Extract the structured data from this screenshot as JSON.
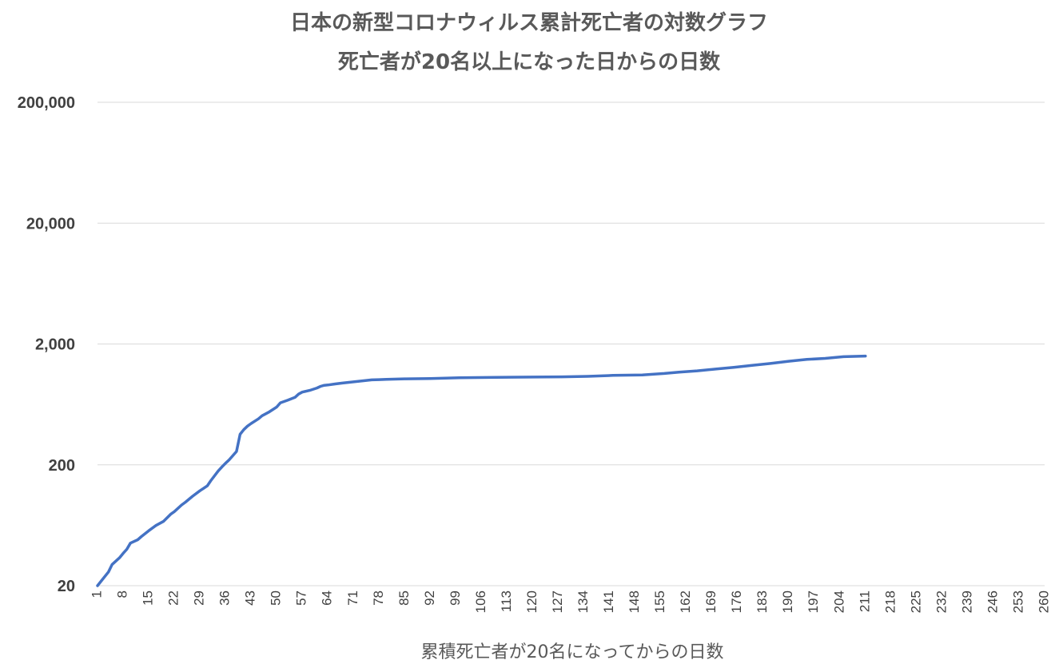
{
  "chart_data": {
    "type": "line",
    "title": "日本の新型コロナウィルス累計死亡者の対数グラフ",
    "subtitle": "死亡者が20名以上になった日からの日数",
    "xlabel": "累積死亡者が20名になってからの日数",
    "ylabel": "",
    "y_scale": "log",
    "ylim": [
      20,
      200000
    ],
    "y_ticks": [
      20,
      200,
      2000,
      20000,
      200000
    ],
    "y_tick_labels": [
      "20",
      "200",
      "2,000",
      "20,000",
      "200,000"
    ],
    "xlim": [
      1,
      260
    ],
    "x_ticks": [
      1,
      8,
      15,
      22,
      29,
      36,
      43,
      50,
      57,
      64,
      71,
      78,
      85,
      92,
      99,
      106,
      113,
      120,
      127,
      134,
      141,
      148,
      155,
      162,
      169,
      176,
      183,
      190,
      197,
      204,
      211,
      218,
      225,
      232,
      239,
      246,
      253,
      260
    ],
    "grid": true,
    "legend": "none",
    "colors": {
      "series": "#4472c4",
      "grid": "#d9d9d9",
      "text": "#595959"
    },
    "series": [
      {
        "x": [
          1,
          4,
          5,
          7,
          8,
          9,
          10,
          12,
          13,
          15,
          17,
          19,
          21,
          22,
          24,
          25,
          27,
          29,
          31,
          32,
          34,
          35,
          36,
          37,
          39,
          40,
          41,
          42,
          43,
          45,
          46,
          48,
          50,
          51,
          53,
          55,
          56,
          57,
          59,
          61,
          62,
          63,
          64,
          66,
          68,
          70,
          72,
          74,
          76,
          78,
          80,
          85,
          92,
          100,
          110,
          120,
          128,
          135,
          142,
          150,
          156,
          160,
          165,
          170,
          175,
          180,
          185,
          190,
          195,
          200,
          205,
          211
        ],
        "values": [
          20,
          26,
          30,
          34,
          37,
          40,
          45,
          48,
          51,
          57,
          63,
          68,
          78,
          82,
          93,
          98,
          110,
          122,
          134,
          148,
          178,
          192,
          206,
          220,
          258,
          358,
          391,
          418,
          440,
          480,
          510,
          549,
          602,
          652,
          685,
          723,
          770,
          800,
          826,
          865,
          893,
          911,
          916,
          934,
          950,
          965,
          980,
          995,
          1010,
          1015,
          1020,
          1030,
          1035,
          1050,
          1060,
          1065,
          1070,
          1080,
          1100,
          1110,
          1140,
          1170,
          1200,
          1240,
          1280,
          1330,
          1380,
          1440,
          1490,
          1520,
          1570,
          1590
        ]
      }
    ]
  }
}
